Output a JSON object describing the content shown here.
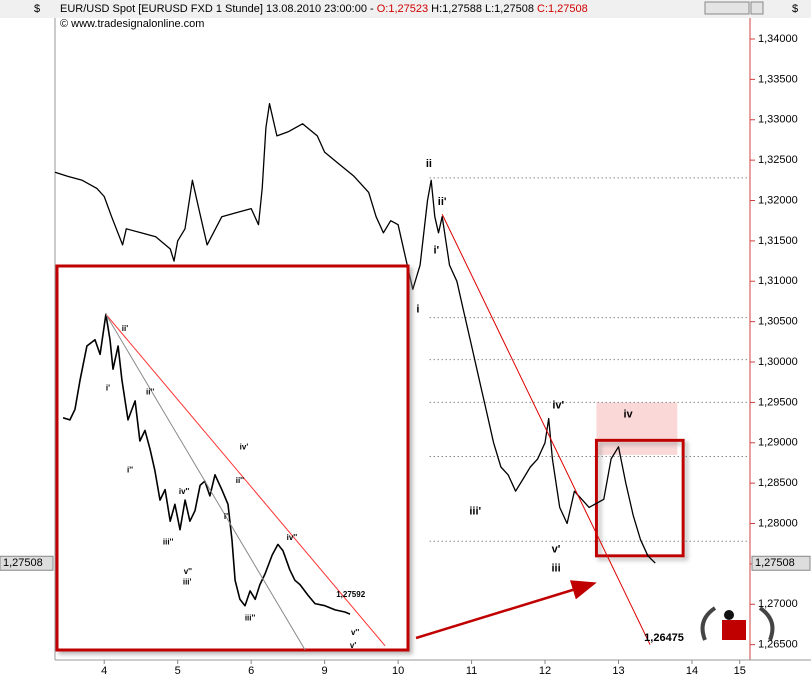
{
  "chart_data": [
    {
      "type": "line",
      "title": "EUR/USD Spot [EURUSD FXD  1 Stunde] 13.08.2010 23:00:00 -",
      "open": "O:1,27523",
      "high": "H:1,27588",
      "low": "L:1,27508",
      "close": "C:1,27508",
      "copyright": "© www.tradesignalonline.com",
      "currency": "$",
      "last_price": {
        "value": 1.27508,
        "label": "1,27508"
      },
      "color": "#000000",
      "xlim": [
        -0.67,
        8.79
      ],
      "ylim": [
        1.2631,
        1.3426
      ],
      "xticks": [
        {
          "value": 0,
          "label": "4"
        },
        {
          "value": 1,
          "label": "5"
        },
        {
          "value": 2,
          "label": "6"
        },
        {
          "value": 3,
          "label": "9"
        },
        {
          "value": 4,
          "label": "10"
        },
        {
          "value": 5,
          "label": "11"
        },
        {
          "value": 6,
          "label": "12"
        },
        {
          "value": 7,
          "label": "13"
        },
        {
          "value": 8,
          "label": "14"
        },
        {
          "value": 8.65,
          "label": "15"
        }
      ],
      "yticks": [
        {
          "value": 1.34,
          "label": "1,34000"
        },
        {
          "value": 1.335,
          "label": "1,33500"
        },
        {
          "value": 1.33,
          "label": "1,33000"
        },
        {
          "value": 1.325,
          "label": "1,32500"
        },
        {
          "value": 1.32,
          "label": "1,32000"
        },
        {
          "value": 1.315,
          "label": "1,31500"
        },
        {
          "value": 1.31,
          "label": "1,31000"
        },
        {
          "value": 1.305,
          "label": "1,30500"
        },
        {
          "value": 1.3,
          "label": "1,30000"
        },
        {
          "value": 1.295,
          "label": "1,29500"
        },
        {
          "value": 1.29,
          "label": "1,29000"
        },
        {
          "value": 1.285,
          "label": "1,28500"
        },
        {
          "value": 1.28,
          "label": "1,28000"
        },
        {
          "value": 1.275,
          "label": "1,27500"
        },
        {
          "value": 1.27,
          "label": "1,27000"
        },
        {
          "value": 1.265,
          "label": "1,26500"
        }
      ],
      "x": [
        -0.67,
        -0.5,
        -0.3,
        -0.1,
        0.0,
        0.1,
        0.25,
        0.3,
        0.5,
        0.7,
        0.9,
        0.95,
        1.0,
        1.1,
        1.2,
        1.3,
        1.4,
        1.6,
        1.8,
        2.0,
        2.1,
        2.15,
        2.2,
        2.25,
        2.35,
        2.5,
        2.7,
        2.9,
        3.0,
        3.2,
        3.4,
        3.6,
        3.7,
        3.8,
        3.9,
        4.0,
        4.1,
        4.2,
        4.3,
        4.4,
        4.45,
        4.5,
        4.55,
        4.6,
        4.7,
        4.8,
        4.9,
        5.0,
        5.1,
        5.2,
        5.3,
        5.4,
        5.5,
        5.6,
        5.7,
        5.8,
        5.9,
        6.0,
        6.05,
        6.1,
        6.2,
        6.3,
        6.4,
        6.5,
        6.6,
        6.7,
        6.8,
        6.9,
        7.0,
        7.1,
        7.2,
        7.3,
        7.4,
        7.5
      ],
      "values": [
        1.3235,
        1.323,
        1.3225,
        1.3215,
        1.3205,
        1.318,
        1.3145,
        1.3165,
        1.316,
        1.3155,
        1.314,
        1.3125,
        1.315,
        1.3165,
        1.3225,
        1.3185,
        1.3145,
        1.318,
        1.3185,
        1.319,
        1.317,
        1.3215,
        1.329,
        1.332,
        1.328,
        1.3285,
        1.3295,
        1.328,
        1.326,
        1.3245,
        1.323,
        1.321,
        1.318,
        1.316,
        1.3175,
        1.317,
        1.313,
        1.309,
        1.312,
        1.32,
        1.3225,
        1.318,
        1.316,
        1.318,
        1.312,
        1.31,
        1.306,
        1.302,
        1.298,
        1.294,
        1.29,
        1.287,
        1.286,
        1.284,
        1.2855,
        1.287,
        1.288,
        1.29,
        1.293,
        1.288,
        1.282,
        1.28,
        1.284,
        1.283,
        1.282,
        1.2825,
        1.283,
        1.288,
        1.2895,
        1.285,
        1.281,
        1.278,
        1.276,
        1.2751
      ],
      "levels": [
        {
          "value": 1.3228,
          "from": 4.43
        },
        {
          "value": 1.3055,
          "from": 4.43
        },
        {
          "value": 1.3003,
          "from": 4.43
        },
        {
          "value": 1.295,
          "from": 4.43
        },
        {
          "value": 1.2883,
          "from": 4.43
        },
        {
          "value": 1.2778,
          "from": 4.43
        }
      ],
      "trend_lines": [
        {
          "x": [
            4.6,
            7.43
          ],
          "y": [
            1.3183,
            1.265
          ],
          "color": "#dd0000"
        }
      ],
      "zones": [
        {
          "x": [
            6.7,
            7.8
          ],
          "y": [
            1.295,
            1.2885
          ],
          "fill": "#fad8d8",
          "stroke": "none"
        },
        {
          "x": [
            6.7,
            7.88
          ],
          "y": [
            1.2903,
            1.276
          ],
          "fill": "none",
          "stroke": "#c00000"
        }
      ],
      "annotations": [
        {
          "text": "ii",
          "x": 4.42,
          "y": 1.3245,
          "color": "#c00000"
        },
        {
          "text": "ii'",
          "x": 4.6,
          "y": 1.3198,
          "color": "#1f2a7a"
        },
        {
          "text": "i'",
          "x": 4.52,
          "y": 1.3138,
          "color": "#1f2a7a"
        },
        {
          "text": "i",
          "x": 4.27,
          "y": 1.3065,
          "color": "#c00000"
        },
        {
          "text": "iv'",
          "x": 6.18,
          "y": 1.2946,
          "color": "#1f2a7a"
        },
        {
          "text": "iii'",
          "x": 5.05,
          "y": 1.2815,
          "color": "#1f2a7a"
        },
        {
          "text": "v'",
          "x": 6.15,
          "y": 1.2768,
          "color": "#1f2a7a"
        },
        {
          "text": "iii",
          "x": 6.15,
          "y": 1.2744,
          "color": "#c00000"
        },
        {
          "text": "iv",
          "x": 7.13,
          "y": 1.2935,
          "color": "#c00000"
        },
        {
          "text": "1,26475",
          "x": 7.62,
          "y": 1.2658,
          "color": "#c00000"
        }
      ]
    },
    {
      "type": "line",
      "color": "#000000",
      "xlim": [
        0,
        100
      ],
      "ylim": [
        1.274,
        1.292
      ],
      "x": [
        0.9,
        2.9,
        4.4,
        5.9,
        7.9,
        10.3,
        11.8,
        13.5,
        14.7,
        15.6,
        17.1,
        18.2,
        20.0,
        22.1,
        23.5,
        25.0,
        26.5,
        27.9,
        29.4,
        30.9,
        32.4,
        33.8,
        35.3,
        36.8,
        38.2,
        39.7,
        41.2,
        42.6,
        44.1,
        45.6,
        47.6,
        49.4,
        50.6,
        51.5,
        52.9,
        54.4,
        55.9,
        57.4,
        58.8,
        60.3,
        62.4,
        64.1,
        65.6,
        67.6,
        69.1,
        70.6,
        72.9,
        75.0,
        77.9,
        80.9,
        83.8,
        85.3
      ],
      "values": [
        1.285,
        1.2849,
        1.2854,
        1.2868,
        1.2884,
        1.2887,
        1.288,
        1.2899,
        1.2887,
        1.2873,
        1.2884,
        1.2868,
        1.2849,
        1.2858,
        1.2839,
        1.2844,
        1.2835,
        1.2825,
        1.2811,
        1.2816,
        1.2801,
        1.2809,
        1.2797,
        1.2811,
        1.2801,
        1.2806,
        1.2818,
        1.282,
        1.2813,
        1.2823,
        1.2816,
        1.2809,
        1.2792,
        1.2773,
        1.2764,
        1.2761,
        1.2768,
        1.2764,
        1.2771,
        1.2776,
        1.2785,
        1.279,
        1.2787,
        1.2778,
        1.2773,
        1.2771,
        1.2766,
        1.2762,
        1.2761,
        1.2759,
        1.2758,
        1.2757
      ],
      "trend_lines": [
        {
          "x": [
            13.5,
            95.6
          ],
          "y": [
            1.2899,
            1.2742
          ],
          "color": "#ff3030"
        },
        {
          "x": [
            13.5,
            72.1
          ],
          "y": [
            1.2899,
            1.274
          ],
          "color": "#8a8a8a"
        }
      ],
      "annotations": [
        {
          "text": "1,27592",
          "x": 85.5,
          "y": 1.2766,
          "color": "#ff3030"
        },
        {
          "text": "ii'",
          "x": 19.1,
          "y": 1.2892,
          "color": "#1f2a7a"
        },
        {
          "text": "i'",
          "x": 14.1,
          "y": 1.2864,
          "color": "#1f2a7a"
        },
        {
          "text": "ii''",
          "x": 26.5,
          "y": 1.2862,
          "color": "#e88a00"
        },
        {
          "text": "i''",
          "x": 20.6,
          "y": 1.2825,
          "color": "#e88a00"
        },
        {
          "text": "iv''",
          "x": 36.5,
          "y": 1.2815,
          "color": "#e88a00"
        },
        {
          "text": "iii''",
          "x": 31.8,
          "y": 1.2791,
          "color": "#e88a00"
        },
        {
          "text": "v''",
          "x": 37.6,
          "y": 1.2777,
          "color": "#e88a00"
        },
        {
          "text": "iii'",
          "x": 37.4,
          "y": 1.2772,
          "color": "#1f2a7a"
        },
        {
          "text": "iv'",
          "x": 54.1,
          "y": 1.2836,
          "color": "#1f2a7a"
        },
        {
          "text": "ii''",
          "x": 52.9,
          "y": 1.282,
          "color": "#e88a00"
        },
        {
          "text": "i''",
          "x": 49.1,
          "y": 1.2803,
          "color": "#e88a00"
        },
        {
          "text": "iv''",
          "x": 68.2,
          "y": 1.2793,
          "color": "#e88a00"
        },
        {
          "text": "iii''",
          "x": 55.9,
          "y": 1.2755,
          "color": "#e88a00"
        },
        {
          "text": "v''",
          "x": 86.8,
          "y": 1.2748,
          "color": "#e88a00"
        },
        {
          "text": "v'",
          "x": 86.2,
          "y": 1.2742,
          "color": "#1f2a7a"
        }
      ]
    }
  ]
}
